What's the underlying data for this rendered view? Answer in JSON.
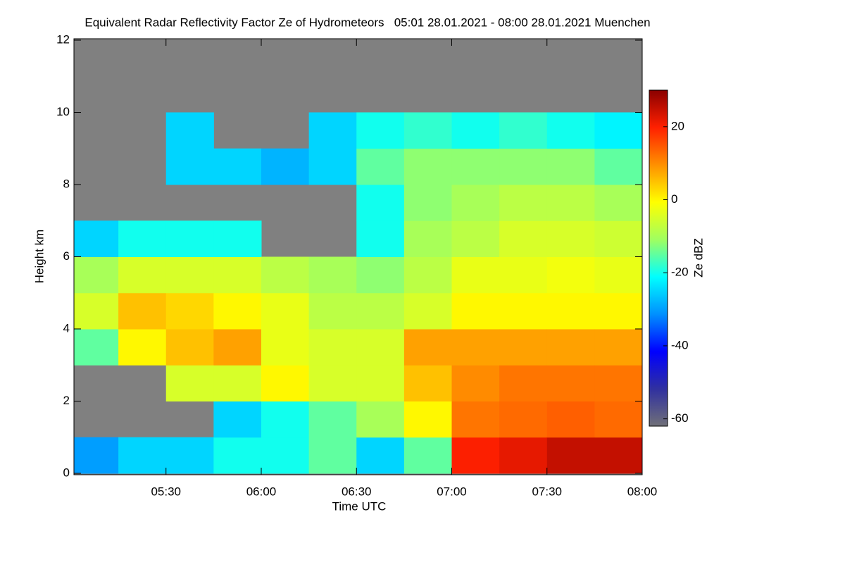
{
  "chart_data": {
    "type": "heatmap",
    "title": "Equivalent Radar Reflectivity Factor Ze of Hydrometeors   05:01 28.01.2021 - 08:00 28.01.2021 Muenchen",
    "x_label": "Time UTC",
    "y_label": "Height km",
    "colorbar_label": "Ze dBZ",
    "x_edges": [
      301,
      315,
      330,
      345,
      360,
      375,
      390,
      405,
      420,
      435,
      450,
      465,
      480
    ],
    "y_edges": [
      0,
      1,
      2,
      3,
      4,
      5,
      6,
      7,
      8,
      9,
      10,
      11,
      12
    ],
    "z": [
      [
        -30,
        null,
        null,
        -15,
        -5,
        -10,
        -25,
        null,
        null,
        null,
        null,
        null
      ],
      [
        -25,
        null,
        null,
        0,
        5,
        -5,
        -20,
        null,
        null,
        null,
        null,
        null
      ],
      [
        -25,
        null,
        -5,
        5,
        3,
        -5,
        -20,
        null,
        -25,
        -25,
        null,
        null
      ],
      [
        -20,
        -25,
        -5,
        8,
        0,
        -5,
        -20,
        null,
        -25,
        null,
        null,
        null
      ],
      [
        -20,
        -20,
        0,
        -3,
        -3,
        -8,
        null,
        null,
        -28,
        null,
        null,
        null
      ],
      [
        -15,
        -15,
        -5,
        -5,
        -8,
        -10,
        null,
        null,
        -25,
        -25,
        null,
        null
      ],
      [
        -25,
        -10,
        -5,
        -5,
        -8,
        -12,
        -20,
        -20,
        -15,
        -20,
        null,
        null
      ],
      [
        -15,
        0,
        5,
        8,
        -5,
        -8,
        -10,
        -12,
        -12,
        -18,
        null,
        null
      ],
      [
        20,
        12,
        10,
        8,
        0,
        -3,
        -8,
        -10,
        -12,
        -20,
        null,
        null
      ],
      [
        22,
        13,
        12,
        8,
        0,
        -3,
        -5,
        -8,
        -12,
        -18,
        null,
        null
      ],
      [
        25,
        14,
        12,
        8,
        0,
        -2,
        -5,
        -8,
        -12,
        -20,
        null,
        null
      ],
      [
        25,
        13,
        12,
        8,
        0,
        -3,
        -6,
        -10,
        -15,
        -22,
        null,
        null
      ]
    ],
    "xlim": [
      301,
      480
    ],
    "ylim": [
      0,
      12
    ],
    "clim": [
      -62,
      30
    ],
    "xticks": [
      {
        "value": 330,
        "label": "05:30"
      },
      {
        "value": 360,
        "label": "06:00"
      },
      {
        "value": 390,
        "label": "06:30"
      },
      {
        "value": 420,
        "label": "07:00"
      },
      {
        "value": 450,
        "label": "07:30"
      },
      {
        "value": 480,
        "label": "08:00"
      }
    ],
    "yticks": [
      0,
      2,
      4,
      6,
      8,
      10,
      12
    ],
    "cticks": [
      -60,
      -40,
      -20,
      0,
      20
    ],
    "missing_color": "#808080",
    "colormap": [
      "#707078",
      "#3030a0",
      "#0000ff",
      "#0090ff",
      "#00ffff",
      "#a0ff60",
      "#ffff00",
      "#ff9000",
      "#ff2000",
      "#8a0000"
    ]
  }
}
